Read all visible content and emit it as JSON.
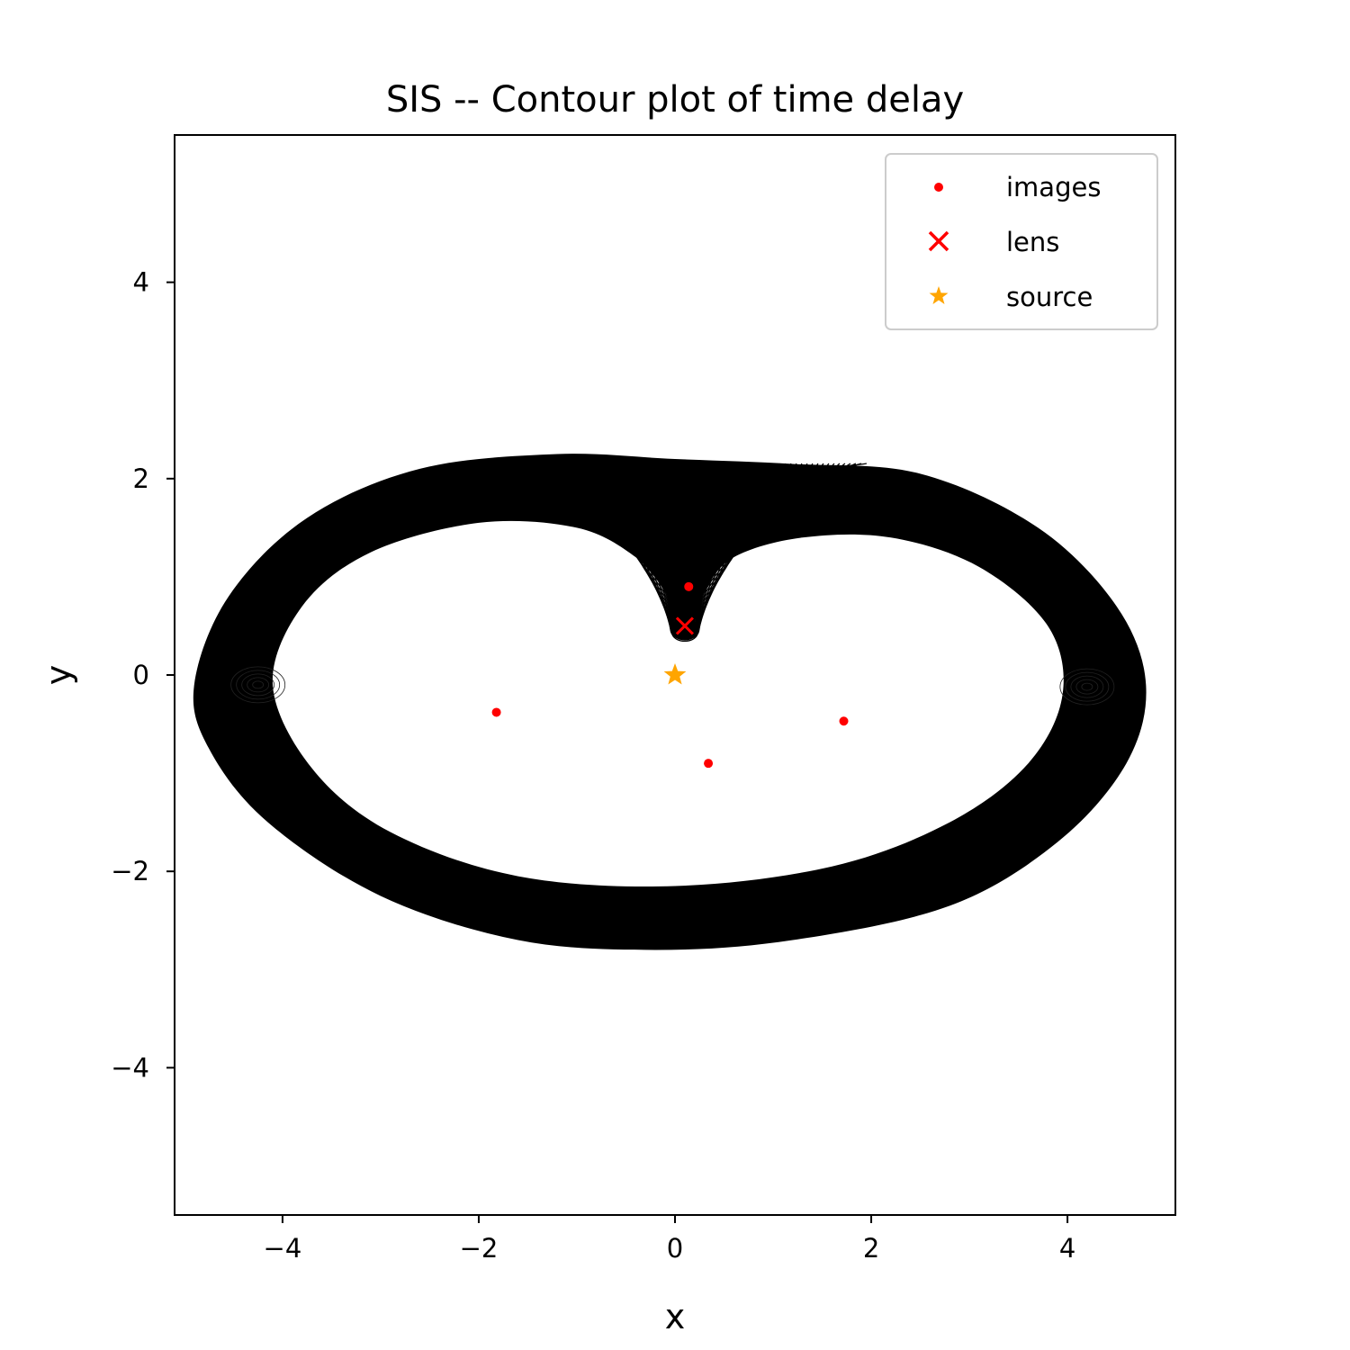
{
  "chart_data": {
    "type": "scatter",
    "title": "SIS -- Contour plot of time delay",
    "xlabel": "x",
    "ylabel": "y",
    "xlim": [
      -5.1,
      5.1
    ],
    "ylim": [
      -5.5,
      5.5
    ],
    "xticks": [
      -4,
      -2,
      0,
      2,
      4
    ],
    "yticks": [
      -4,
      -2,
      0,
      2,
      4
    ],
    "xtick_labels": [
      "−4",
      "−2",
      "0",
      "2",
      "4"
    ],
    "ytick_labels": [
      "−4",
      "−2",
      "0",
      "2",
      "4"
    ],
    "grid": false,
    "legend_position": "top-right",
    "contour": {
      "color": "#000000",
      "level_count": 60,
      "outer": [
        [
          -4.9,
          -0.1
        ],
        [
          -4.55,
          0.8
        ],
        [
          -3.75,
          1.6
        ],
        [
          -2.6,
          2.1
        ],
        [
          -1.2,
          2.25
        ],
        [
          0.0,
          2.2
        ],
        [
          1.2,
          2.15
        ],
        [
          2.5,
          2.05
        ],
        [
          3.7,
          1.5
        ],
        [
          4.5,
          0.7
        ],
        [
          4.8,
          -0.1
        ],
        [
          4.6,
          -0.9
        ],
        [
          3.9,
          -1.7
        ],
        [
          2.8,
          -2.35
        ],
        [
          1.2,
          -2.7
        ],
        [
          -0.2,
          -2.8
        ],
        [
          -1.6,
          -2.7
        ],
        [
          -3.0,
          -2.25
        ],
        [
          -4.15,
          -1.5
        ],
        [
          -4.75,
          -0.75
        ]
      ],
      "inner": [
        [
          -4.1,
          -0.1
        ],
        [
          -3.8,
          0.7
        ],
        [
          -3.1,
          1.25
        ],
        [
          -2.0,
          1.55
        ],
        [
          -1.0,
          1.5
        ],
        [
          -0.4,
          1.2
        ],
        [
          -0.1,
          0.85
        ],
        [
          0.0,
          0.55
        ],
        [
          0.1,
          0.45
        ],
        [
          0.2,
          0.55
        ],
        [
          0.3,
          0.85
        ],
        [
          0.6,
          1.2
        ],
        [
          1.3,
          1.4
        ],
        [
          2.2,
          1.4
        ],
        [
          3.1,
          1.1
        ],
        [
          3.8,
          0.5
        ],
        [
          3.95,
          -0.2
        ],
        [
          3.6,
          -0.9
        ],
        [
          2.8,
          -1.5
        ],
        [
          1.6,
          -1.95
        ],
        [
          0.0,
          -2.15
        ],
        [
          -1.6,
          -2.05
        ],
        [
          -2.9,
          -1.6
        ],
        [
          -3.7,
          -0.95
        ]
      ],
      "cusp": [
        0.1,
        0.45
      ],
      "wing_centers": [
        [
          -4.25,
          -0.1
        ],
        [
          4.2,
          -0.12
        ]
      ]
    },
    "series": [
      {
        "name": "images",
        "marker": "dot",
        "color": "#ff0000",
        "x": [
          0.14,
          -1.82,
          1.72,
          0.34
        ],
        "y": [
          0.9,
          -0.38,
          -0.47,
          -0.9
        ]
      },
      {
        "name": "lens",
        "marker": "x",
        "color": "#ff0000",
        "x": [
          0.1
        ],
        "y": [
          0.5
        ]
      },
      {
        "name": "source",
        "marker": "star",
        "color": "#ffa500",
        "x": [
          0.0
        ],
        "y": [
          0.0
        ]
      }
    ]
  }
}
